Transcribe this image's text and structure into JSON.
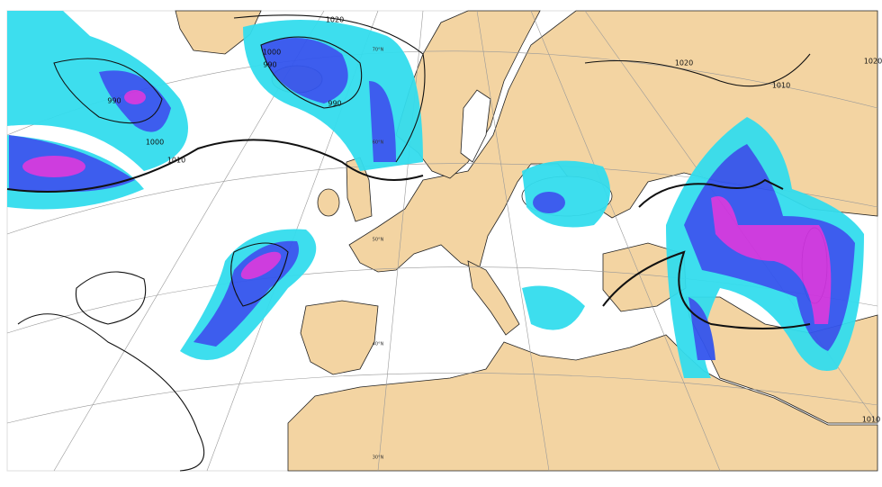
{
  "isobar_labels": [
    "1020",
    "1000",
    "990",
    "990",
    "990",
    "1000",
    "1010",
    "1020",
    "1010",
    "1020",
    "1010"
  ],
  "latitude_labels": [
    "70°N",
    "60°N",
    "50°N",
    "40°N",
    "30°N"
  ]
}
